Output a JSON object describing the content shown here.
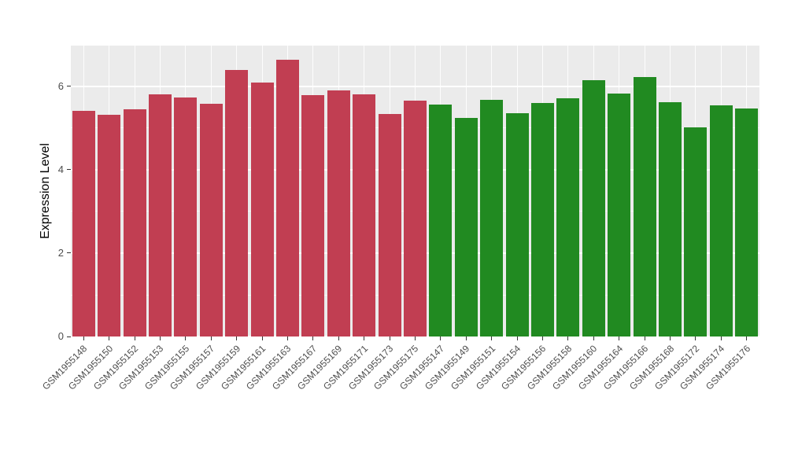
{
  "chart_data": {
    "type": "bar",
    "title": "",
    "xlabel": "",
    "ylabel": "Expression Level",
    "ylim": [
      0,
      6.98
    ],
    "yticks": [
      0,
      2,
      4,
      6
    ],
    "yticks_minor": [
      1,
      3,
      5
    ],
    "grid": "on",
    "legend": "none",
    "panel_bg": "#EBEBEB",
    "grid_color": "#FFFFFF",
    "tick_text_color": "#4d4d4d",
    "group_colors": {
      "group1": "#C13E52",
      "group2": "#218A21"
    },
    "categories": [
      "GSM1955148",
      "GSM1955150",
      "GSM1955152",
      "GSM1955153",
      "GSM1955155",
      "GSM1955157",
      "GSM1955159",
      "GSM1955161",
      "GSM1955163",
      "GSM1955167",
      "GSM1955169",
      "GSM1955171",
      "GSM1955173",
      "GSM1955175",
      "GSM1955147",
      "GSM1955149",
      "GSM1955151",
      "GSM1955154",
      "GSM1955156",
      "GSM1955158",
      "GSM1955160",
      "GSM1955164",
      "GSM1955166",
      "GSM1955168",
      "GSM1955172",
      "GSM1955174",
      "GSM1955176"
    ],
    "values": [
      5.42,
      5.32,
      5.45,
      5.82,
      5.73,
      5.58,
      6.4,
      6.1,
      6.65,
      5.79,
      5.9,
      5.81,
      5.33,
      5.66,
      5.56,
      5.24,
      5.68,
      5.35,
      5.61,
      5.72,
      6.15,
      5.83,
      6.22,
      5.62,
      5.02,
      5.55,
      5.48
    ],
    "groups": [
      "group1",
      "group1",
      "group1",
      "group1",
      "group1",
      "group1",
      "group1",
      "group1",
      "group1",
      "group1",
      "group1",
      "group1",
      "group1",
      "group1",
      "group2",
      "group2",
      "group2",
      "group2",
      "group2",
      "group2",
      "group2",
      "group2",
      "group2",
      "group2",
      "group2",
      "group2",
      "group2"
    ]
  }
}
